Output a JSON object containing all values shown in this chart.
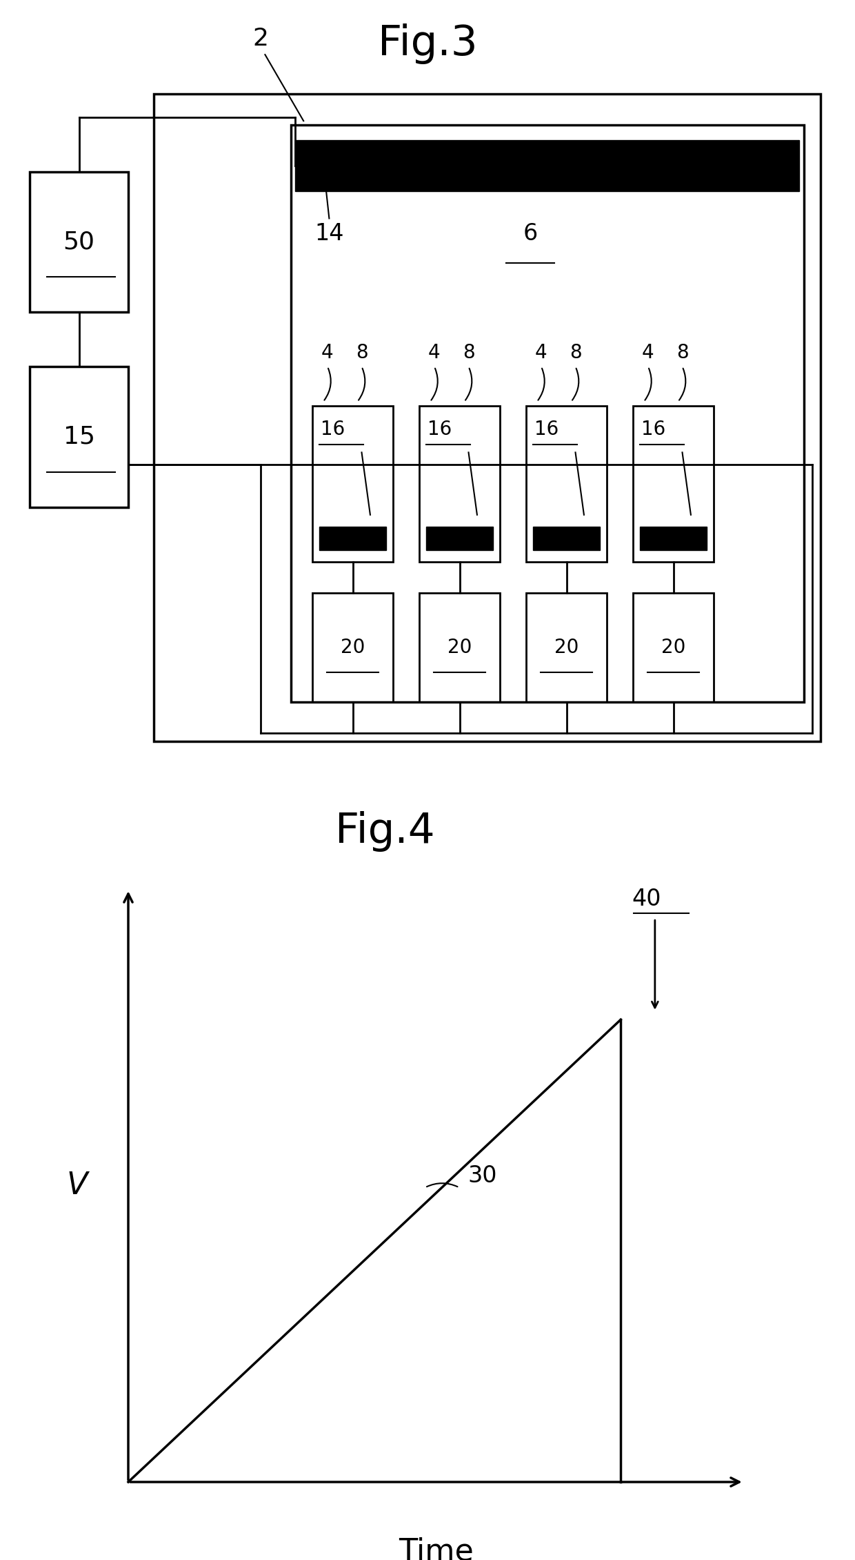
{
  "fig3_title": "Fig.3",
  "fig4_title": "Fig.4",
  "bg_color": "#ffffff",
  "line_color": "#000000",
  "lw_thick": 2.5,
  "lw_med": 2.0,
  "lw_thin": 1.5,
  "fig3": {
    "label_2": "2",
    "label_6": "6",
    "label_14": "14",
    "label_50": "50",
    "label_15": "15",
    "label_16": "16",
    "label_20": "20",
    "label_4": "4",
    "label_8": "8"
  },
  "fig4": {
    "label_30": "30",
    "label_40": "40",
    "label_V": "V",
    "label_Time": "Time"
  }
}
